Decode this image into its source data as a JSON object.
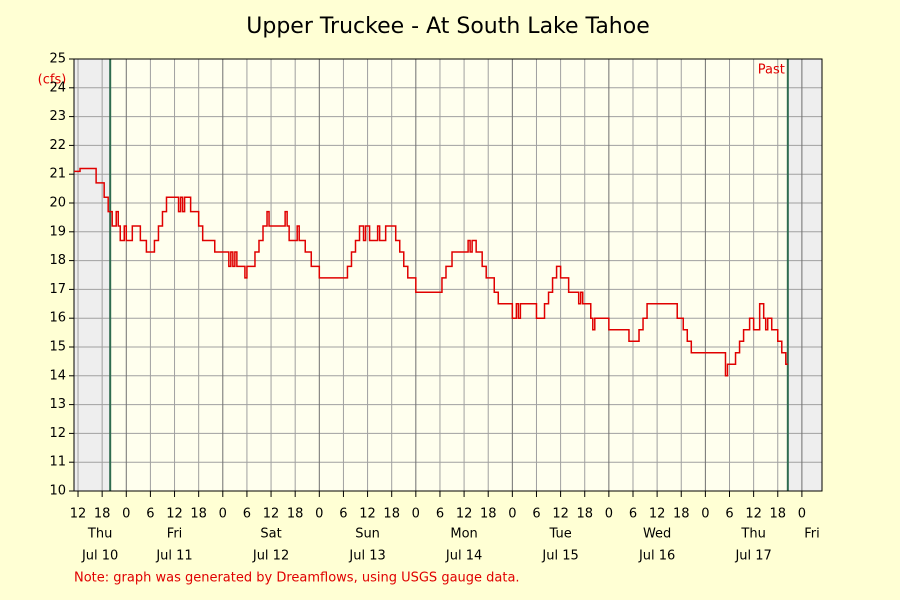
{
  "chart_data": {
    "type": "line",
    "step": true,
    "title": "Upper Truckee - At South Lake Tahoe",
    "y_label": "(cfs)",
    "annotation": "Past",
    "note": "Note: graph was generated by Dreamflows, using USGS gauge data.",
    "xlim": [
      11,
      197
    ],
    "ylim": [
      10,
      25
    ],
    "yticks": [
      10,
      11,
      12,
      13,
      14,
      15,
      16,
      17,
      18,
      19,
      20,
      21,
      22,
      23,
      24,
      25
    ],
    "xticks": [
      {
        "value": 12,
        "label": "12"
      },
      {
        "value": 18,
        "label": "18"
      },
      {
        "value": 24,
        "label": "0"
      },
      {
        "value": 30,
        "label": "6"
      },
      {
        "value": 36,
        "label": "12"
      },
      {
        "value": 42,
        "label": "18"
      },
      {
        "value": 48,
        "label": "0"
      },
      {
        "value": 54,
        "label": "6"
      },
      {
        "value": 60,
        "label": "12"
      },
      {
        "value": 66,
        "label": "18"
      },
      {
        "value": 72,
        "label": "0"
      },
      {
        "value": 78,
        "label": "6"
      },
      {
        "value": 84,
        "label": "12"
      },
      {
        "value": 90,
        "label": "18"
      },
      {
        "value": 96,
        "label": "0"
      },
      {
        "value": 102,
        "label": "6"
      },
      {
        "value": 108,
        "label": "12"
      },
      {
        "value": 114,
        "label": "18"
      },
      {
        "value": 120,
        "label": "0"
      },
      {
        "value": 126,
        "label": "6"
      },
      {
        "value": 132,
        "label": "12"
      },
      {
        "value": 138,
        "label": "18"
      },
      {
        "value": 144,
        "label": "0"
      },
      {
        "value": 150,
        "label": "6"
      },
      {
        "value": 156,
        "label": "12"
      },
      {
        "value": 162,
        "label": "18"
      },
      {
        "value": 168,
        "label": "0"
      },
      {
        "value": 174,
        "label": "6"
      },
      {
        "value": 180,
        "label": "12"
      },
      {
        "value": 186,
        "label": "18"
      },
      {
        "value": 192,
        "label": "0"
      }
    ],
    "weekdays": [
      "Thu",
      "Fri",
      "Sat",
      "Sun",
      "Mon",
      "Tue",
      "Wed",
      "Thu",
      "Fri"
    ],
    "dates": [
      "Jul 10",
      "Jul 11",
      "Jul 12",
      "Jul 13",
      "Jul 14",
      "Jul 15",
      "Jul 16",
      "Jul 17",
      null
    ],
    "shaded": [
      20,
      188.5
    ],
    "grid": true,
    "series": [
      {
        "color": "#e00000",
        "x": [
          11,
          12.5,
          16.5,
          18.5,
          19.5,
          20.5,
          21.5,
          22,
          22.5,
          23.5,
          24,
          25.5,
          27.5,
          29,
          31,
          32,
          33,
          34,
          37,
          37.5,
          38,
          38.5,
          40,
          42,
          43,
          46,
          49.5,
          50,
          50.5,
          51,
          51.5,
          53.5,
          54,
          56,
          57,
          58,
          59,
          59.5,
          63.5,
          64,
          64.5,
          66.5,
          67,
          68.5,
          70,
          72,
          79,
          80,
          81,
          82,
          83,
          83.5,
          84.5,
          86.5,
          87,
          88.5,
          91,
          92,
          93,
          94,
          96,
          102.5,
          103.5,
          105,
          109,
          109.5,
          110,
          111,
          112.5,
          113.5,
          115.5,
          116.5,
          120,
          121,
          121.5,
          122,
          126,
          128,
          129,
          130,
          131,
          132,
          134,
          136.5,
          137,
          137.5,
          139.5,
          140,
          140.5,
          144,
          149,
          151.5,
          152.5,
          153.5,
          161,
          162.5,
          163.5,
          164.5,
          173,
          173.5,
          175.5,
          176.5,
          177.5,
          179,
          180,
          181.5,
          182.5,
          183,
          183.5,
          184.5,
          186,
          187,
          188,
          188.5
        ],
        "values": [
          21.1,
          21.2,
          20.7,
          20.2,
          19.7,
          19.2,
          19.7,
          19.2,
          18.7,
          19.2,
          18.7,
          19.2,
          18.7,
          18.3,
          18.7,
          19.2,
          19.7,
          20.2,
          19.7,
          20.2,
          19.7,
          20.2,
          19.7,
          19.2,
          18.7,
          18.3,
          17.8,
          18.3,
          17.8,
          18.3,
          17.8,
          17.4,
          17.8,
          18.3,
          18.7,
          19.2,
          19.7,
          19.2,
          19.7,
          19.2,
          18.7,
          19.2,
          18.7,
          18.3,
          17.8,
          17.4,
          17.8,
          18.3,
          18.7,
          19.2,
          18.7,
          19.2,
          18.7,
          19.2,
          18.7,
          19.2,
          18.7,
          18.3,
          17.8,
          17.4,
          16.9,
          17.4,
          17.8,
          18.3,
          18.7,
          18.3,
          18.7,
          18.3,
          17.8,
          17.4,
          16.9,
          16.5,
          16.0,
          16.5,
          16.0,
          16.5,
          16.0,
          16.5,
          16.9,
          17.4,
          17.8,
          17.4,
          16.9,
          16.5,
          16.9,
          16.5,
          16.0,
          15.6,
          16.0,
          15.6,
          15.2,
          15.6,
          16.0,
          16.5,
          16.0,
          15.6,
          15.2,
          14.8,
          14.0,
          14.4,
          14.8,
          15.2,
          15.6,
          16.0,
          15.6,
          16.5,
          16.0,
          15.6,
          16.0,
          15.6,
          15.2,
          14.8,
          14.4,
          14.4
        ]
      }
    ]
  }
}
